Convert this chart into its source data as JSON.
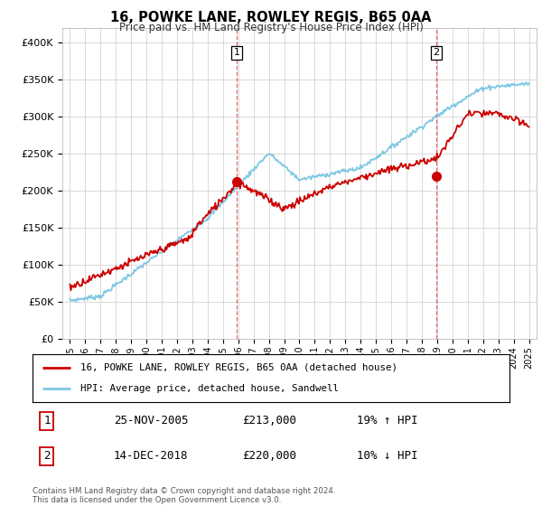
{
  "title": "16, POWKE LANE, ROWLEY REGIS, B65 0AA",
  "subtitle": "Price paid vs. HM Land Registry's House Price Index (HPI)",
  "ylim": [
    0,
    420000
  ],
  "yticks": [
    0,
    50000,
    100000,
    150000,
    200000,
    250000,
    300000,
    350000,
    400000
  ],
  "sale1_x": 2005.9,
  "sale1_price": 213000,
  "sale2_x": 2018.95,
  "sale2_price": 220000,
  "hpi_color": "#7ec8e3",
  "price_color": "#cc0000",
  "vline_color": "#cc0000",
  "legend1_text": "16, POWKE LANE, ROWLEY REGIS, B65 0AA (detached house)",
  "legend2_text": "HPI: Average price, detached house, Sandwell",
  "table_row1": [
    "1",
    "25-NOV-2005",
    "£213,000",
    "19% ↑ HPI"
  ],
  "table_row2": [
    "2",
    "14-DEC-2018",
    "£220,000",
    "10% ↓ HPI"
  ],
  "footnote": "Contains HM Land Registry data © Crown copyright and database right 2024.\nThis data is licensed under the Open Government Licence v3.0.",
  "background_color": "#ffffff",
  "grid_color": "#cccccc"
}
